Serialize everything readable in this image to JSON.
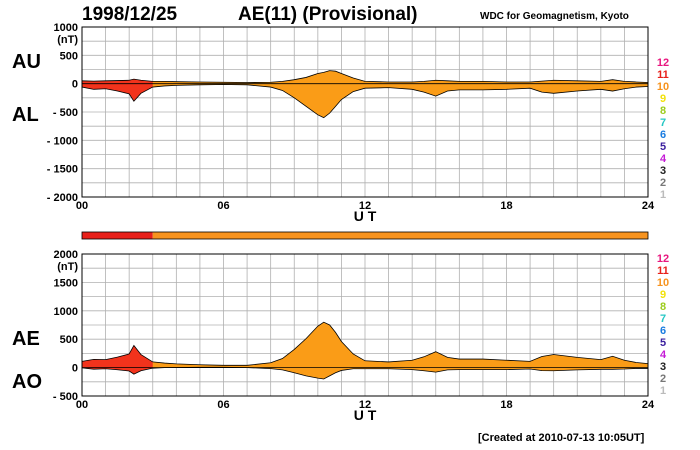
{
  "header": {
    "date": "1998/12/25",
    "title": "AE(11) (Provisional)",
    "source": "WDC for Geomagnetism, Kyoto",
    "created": "[Created at 2010-07-13 10:05UT]"
  },
  "legend": {
    "labels": [
      "12",
      "11",
      "10",
      "9",
      "8",
      "7",
      "6",
      "5",
      "4",
      "3",
      "2",
      "1"
    ],
    "colors": [
      "#e8177f",
      "#e8201a",
      "#f7931e",
      "#f2e20c",
      "#9ccc1c",
      "#27c7c4",
      "#1a7ce0",
      "#3a1f9e",
      "#c41ad6",
      "#222222",
      "#777777",
      "#bbbbbb"
    ]
  },
  "colors": {
    "early": "#f2331c",
    "main": "#fa9c17"
  },
  "chart_data": [
    {
      "type": "area",
      "panel": "AU/AL",
      "side_labels": [
        "AU",
        "AL"
      ],
      "unit_label": "(nT)",
      "xlabel": "U T",
      "xlim": [
        0,
        24
      ],
      "xticks": [
        "00",
        "06",
        "12",
        "18",
        "24"
      ],
      "ylim": [
        -2000,
        1000
      ],
      "yticks": [
        1000,
        500,
        0,
        -500,
        -1000,
        -1500,
        -2000
      ],
      "ytick_labels": [
        "1000",
        "500",
        "0",
        "- 500",
        "- 1000",
        "- 1500",
        "- 2000"
      ],
      "station_count_bar": [
        {
          "from": 0,
          "to": 3,
          "stations": 11
        },
        {
          "from": 3,
          "to": 24,
          "stations": 10
        }
      ],
      "series": [
        {
          "name": "AU",
          "x": [
            0,
            0.5,
            1,
            1.5,
            2,
            2.2,
            2.5,
            3,
            3.5,
            4,
            5,
            6,
            7,
            8,
            8.5,
            9,
            9.5,
            10,
            10.25,
            10.5,
            10.75,
            11,
            11.5,
            12,
            13,
            14,
            14.5,
            15,
            15.5,
            16,
            17,
            18,
            19,
            19.5,
            20,
            21,
            22,
            22.5,
            23,
            23.5,
            24
          ],
          "values": [
            50,
            45,
            50,
            55,
            60,
            80,
            60,
            40,
            40,
            35,
            30,
            25,
            20,
            25,
            40,
            70,
            110,
            180,
            200,
            230,
            220,
            180,
            100,
            40,
            30,
            30,
            40,
            60,
            50,
            40,
            40,
            30,
            30,
            45,
            60,
            50,
            40,
            70,
            40,
            30,
            20
          ]
        },
        {
          "name": "AL",
          "x": [
            0,
            0.5,
            1,
            1.5,
            2,
            2.2,
            2.5,
            3,
            3.5,
            4,
            5,
            6,
            7,
            8,
            8.5,
            9,
            9.5,
            10,
            10.25,
            10.5,
            10.75,
            11,
            11.5,
            12,
            13,
            14,
            14.5,
            15,
            15.5,
            16,
            17,
            18,
            19,
            19.5,
            20,
            21,
            22,
            22.5,
            23,
            23.5,
            24
          ],
          "values": [
            -60,
            -100,
            -90,
            -130,
            -180,
            -310,
            -170,
            -60,
            -40,
            -30,
            -20,
            -15,
            -20,
            -60,
            -120,
            -250,
            -400,
            -550,
            -600,
            -520,
            -400,
            -280,
            -140,
            -80,
            -70,
            -100,
            -150,
            -220,
            -130,
            -110,
            -110,
            -100,
            -80,
            -150,
            -170,
            -130,
            -100,
            -130,
            -90,
            -60,
            -50
          ]
        }
      ]
    },
    {
      "type": "area",
      "panel": "AE/AO",
      "side_labels": [
        "AE",
        "AO"
      ],
      "unit_label": "(nT)",
      "xlabel": "U T",
      "xlim": [
        0,
        24
      ],
      "xticks": [
        "00",
        "06",
        "12",
        "18",
        "24"
      ],
      "ylim": [
        -500,
        2000
      ],
      "yticks": [
        2000,
        1500,
        1000,
        500,
        0,
        -500
      ],
      "ytick_labels": [
        "2000",
        "1500",
        "1000",
        "500",
        "0",
        "- 500"
      ],
      "series": [
        {
          "name": "AE",
          "x": [
            0,
            0.5,
            1,
            1.5,
            2,
            2.2,
            2.5,
            3,
            3.5,
            4,
            5,
            6,
            7,
            8,
            8.5,
            9,
            9.5,
            10,
            10.25,
            10.5,
            10.75,
            11,
            11.5,
            12,
            13,
            14,
            14.5,
            15,
            15.5,
            16,
            17,
            18,
            19,
            19.5,
            20,
            21,
            22,
            22.5,
            23,
            23.5,
            24
          ],
          "values": [
            110,
            145,
            140,
            185,
            240,
            390,
            230,
            100,
            80,
            65,
            50,
            40,
            40,
            85,
            160,
            320,
            510,
            730,
            800,
            750,
            620,
            460,
            240,
            120,
            100,
            130,
            190,
            280,
            180,
            150,
            150,
            130,
            110,
            195,
            230,
            180,
            140,
            200,
            130,
            90,
            70
          ]
        },
        {
          "name": "AO",
          "x": [
            0,
            0.5,
            1,
            1.5,
            2,
            2.2,
            2.5,
            3,
            3.5,
            4,
            5,
            6,
            7,
            8,
            8.5,
            9,
            9.5,
            10,
            10.25,
            10.5,
            10.75,
            11,
            11.5,
            12,
            13,
            14,
            14.5,
            15,
            15.5,
            16,
            17,
            18,
            19,
            19.5,
            20,
            21,
            22,
            22.5,
            23,
            23.5,
            24
          ],
          "values": [
            -5,
            -28,
            -20,
            -38,
            -60,
            -115,
            -55,
            -10,
            0,
            2,
            5,
            5,
            0,
            -18,
            -40,
            -90,
            -145,
            -185,
            -200,
            -145,
            -90,
            -50,
            -20,
            -20,
            -20,
            -35,
            -55,
            -80,
            -40,
            -35,
            -35,
            -35,
            -25,
            -53,
            -55,
            -40,
            -30,
            -30,
            -25,
            -15,
            -15
          ]
        }
      ]
    }
  ]
}
